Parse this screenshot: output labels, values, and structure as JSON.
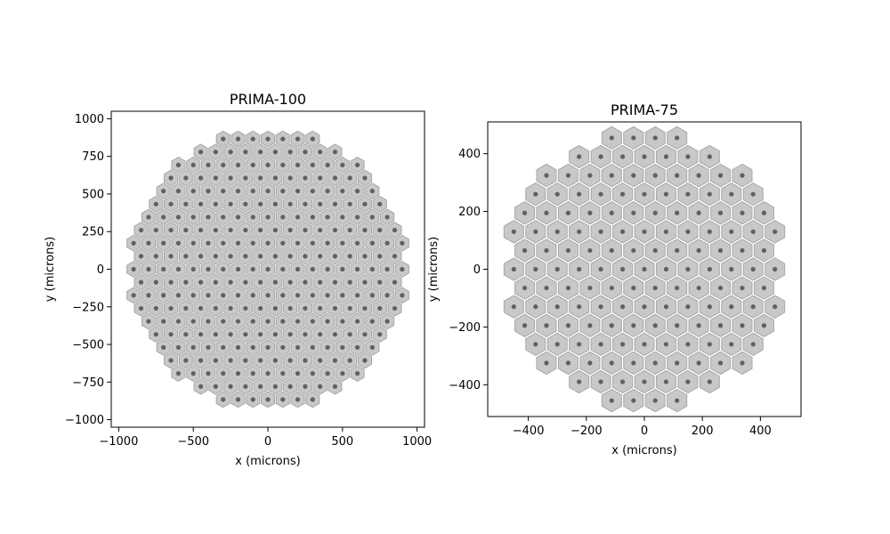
{
  "chart_data": [
    {
      "type": "scatter",
      "title": "PRIMA-100",
      "xlabel": "x (microns)",
      "ylabel": "y (microns)",
      "xlim": [
        -1050,
        1050
      ],
      "ylim": [
        -1050,
        1050
      ],
      "xticks": [
        -1000,
        -500,
        0,
        500,
        1000
      ],
      "yticks": [
        -1000,
        -750,
        -500,
        -250,
        0,
        250,
        500,
        750,
        1000
      ],
      "grid": false,
      "pitch": 100,
      "boundary_radius": 930,
      "pixel_fill": "#c8c8c8",
      "pixel_edge": "#a8a8a8",
      "electrode_color": "#606060"
    },
    {
      "type": "scatter",
      "title": "PRIMA-75",
      "xlabel": "x (microns)",
      "ylabel": "y (microns)",
      "xlim": [
        -540,
        540
      ],
      "ylim": [
        -510,
        510
      ],
      "xticks": [
        -400,
        -200,
        0,
        200,
        400
      ],
      "yticks": [
        -400,
        -200,
        0,
        200,
        400
      ],
      "grid": false,
      "pitch": 75,
      "boundary_radius": 480,
      "pixel_fill": "#c8c8c8",
      "pixel_edge": "#a8a8a8",
      "electrode_color": "#606060"
    }
  ]
}
